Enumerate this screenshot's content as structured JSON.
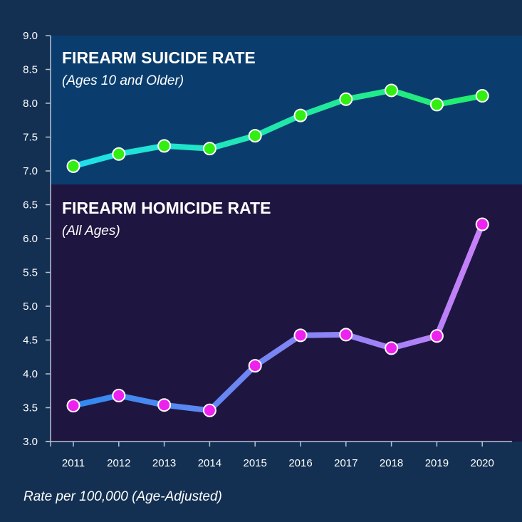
{
  "chart_data": [
    {
      "type": "line",
      "title": "FIREARM SUICIDE RATE",
      "subtitle": "(Ages 10 and Older)",
      "x": [
        "2011",
        "2012",
        "2013",
        "2014",
        "2015",
        "2016",
        "2017",
        "2018",
        "2019",
        "2020"
      ],
      "values": [
        7.07,
        7.25,
        7.37,
        7.33,
        7.52,
        7.82,
        8.06,
        8.19,
        7.98,
        8.11
      ],
      "line_gradient": [
        "#1fe0f0",
        "#22ee66"
      ],
      "marker_color": "#33ee11",
      "panel_color": "#0a3d6e"
    },
    {
      "type": "line",
      "title": "FIREARM HOMICIDE RATE",
      "subtitle": "(All Ages)",
      "x": [
        "2011",
        "2012",
        "2013",
        "2014",
        "2015",
        "2016",
        "2017",
        "2018",
        "2019",
        "2020"
      ],
      "values": [
        3.53,
        3.68,
        3.54,
        3.46,
        4.12,
        4.57,
        4.58,
        4.38,
        4.56,
        6.21
      ],
      "line_gradient": [
        "#2a8af0",
        "#cc80f8"
      ],
      "marker_color": "#ee22ee",
      "panel_color": "#1e1640"
    }
  ],
  "axis": {
    "ylim": [
      3.0,
      9.0
    ],
    "yticks": [
      "3.0",
      "3.5",
      "4.0",
      "4.5",
      "5.0",
      "5.5",
      "6.0",
      "6.5",
      "7.0",
      "7.5",
      "8.0",
      "8.5",
      "9.0"
    ],
    "panel_split": 6.8,
    "grid": false
  },
  "footnote": "Rate per 100,000 (Age-Adjusted)",
  "colors": {
    "background": "#133052",
    "axis": "#b8c2d0",
    "text": "#ffffff"
  }
}
